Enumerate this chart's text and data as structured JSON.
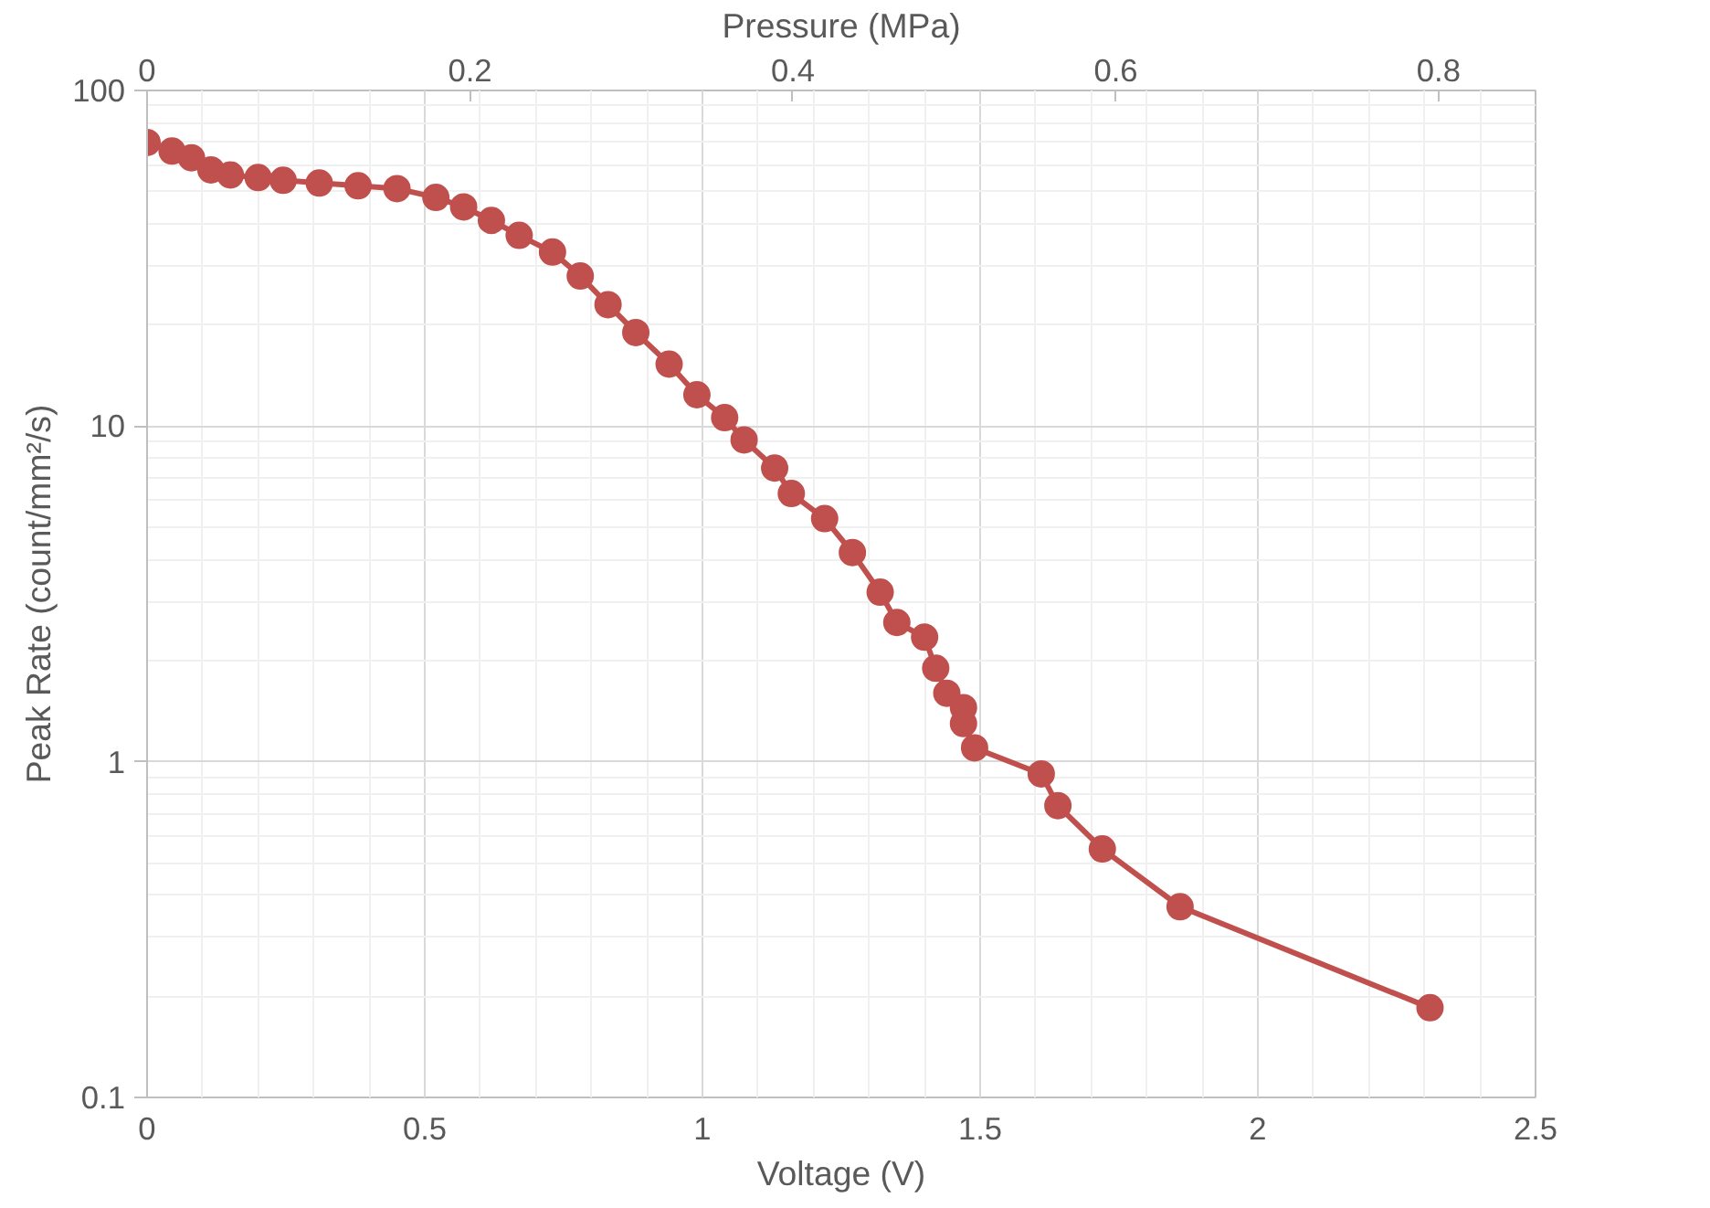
{
  "chart_data": {
    "type": "line",
    "xlabel": "Voltage (V)",
    "ylabel": "Peak Rate (count/mm²/s)",
    "x2label": "Pressure (MPa)",
    "x": [
      0,
      0.045,
      0.08,
      0.115,
      0.15,
      0.2,
      0.245,
      0.31,
      0.38,
      0.45,
      0.52,
      0.57,
      0.62,
      0.67,
      0.73,
      0.78,
      0.83,
      0.88,
      0.94,
      0.99,
      1.04,
      1.075,
      1.13,
      1.16,
      1.22,
      1.27,
      1.32,
      1.35,
      1.4,
      1.42,
      1.44,
      1.47,
      1.47,
      1.49,
      1.61,
      1.64,
      1.72,
      1.86,
      2.31
    ],
    "series": [
      {
        "color": "#c0504d",
        "values": [
          70,
          66,
          63,
          58,
          56,
          55,
          54,
          53,
          52,
          51,
          48,
          45,
          41,
          37,
          33,
          28,
          23,
          19,
          15.3,
          12.4,
          10.6,
          9.1,
          7.5,
          6.3,
          5.3,
          4.2,
          3.2,
          2.6,
          2.35,
          1.9,
          1.6,
          1.45,
          1.3,
          1.1,
          0.92,
          0.74,
          0.55,
          0.37,
          0.185
        ]
      }
    ],
    "xlim": [
      0,
      2.5
    ],
    "xticks": [
      0,
      0.5,
      1,
      1.5,
      2,
      2.5
    ],
    "ylim": [
      0.1,
      100
    ],
    "yticks": [
      0.1,
      1,
      10,
      100
    ],
    "x2lim": [
      0,
      0.86
    ],
    "x2ticks": [
      0,
      0.2,
      0.4,
      0.6,
      0.8
    ],
    "log": "y",
    "grid": true,
    "marker": "circle",
    "line_style": "solid"
  }
}
